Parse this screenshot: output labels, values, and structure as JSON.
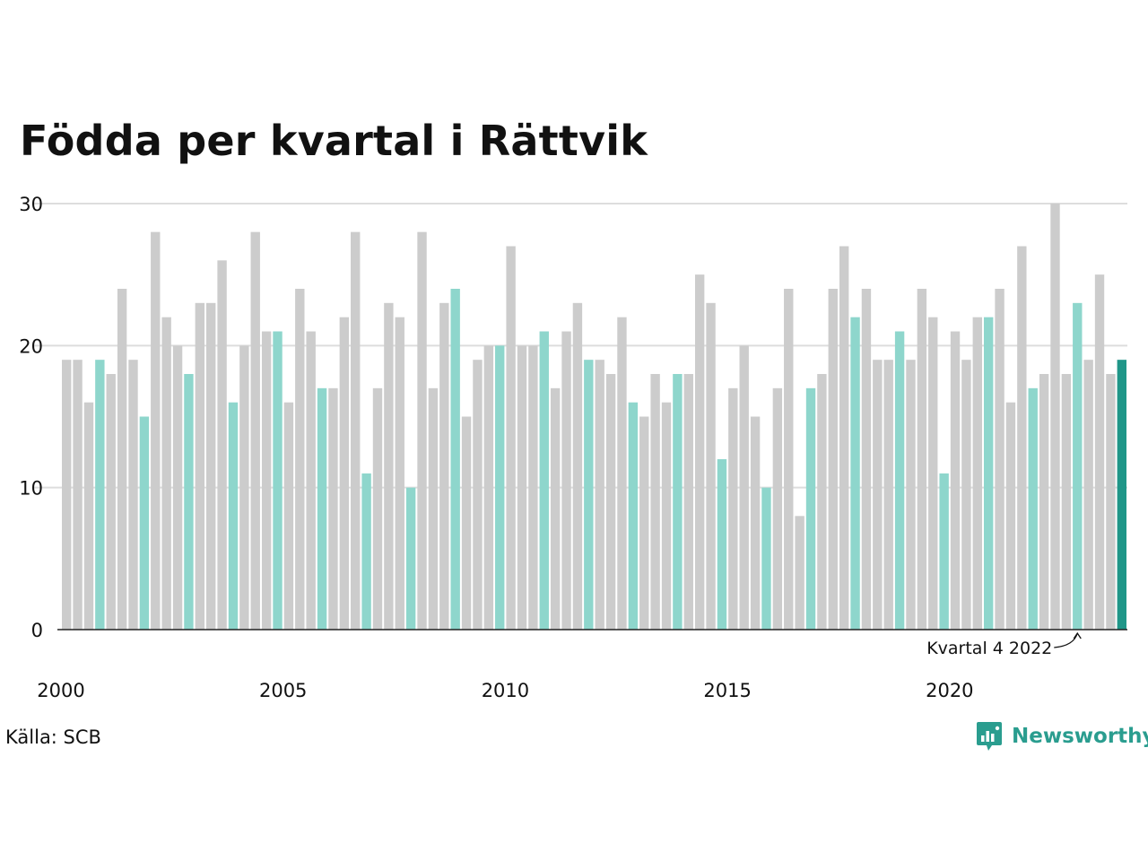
{
  "chart_data": {
    "type": "bar",
    "title": "Födda per kvartal i Rättvik",
    "xlabel": "",
    "ylabel": "",
    "ylim": [
      0,
      30
    ],
    "yticks": [
      0,
      10,
      20,
      30
    ],
    "xtick_labels": [
      "2000",
      "2005",
      "2010",
      "2015",
      "2020"
    ],
    "grid": true,
    "categories": [
      "2000 Q1",
      "2000 Q2",
      "2000 Q3",
      "2000 Q4",
      "2001 Q1",
      "2001 Q2",
      "2001 Q3",
      "2001 Q4",
      "2002 Q1",
      "2002 Q2",
      "2002 Q3",
      "2002 Q4",
      "2003 Q1",
      "2003 Q2",
      "2003 Q3",
      "2003 Q4",
      "2004 Q1",
      "2004 Q2",
      "2004 Q3",
      "2004 Q4",
      "2005 Q1",
      "2005 Q2",
      "2005 Q3",
      "2005 Q4",
      "2006 Q1",
      "2006 Q2",
      "2006 Q3",
      "2006 Q4",
      "2007 Q1",
      "2007 Q2",
      "2007 Q3",
      "2007 Q4",
      "2008 Q1",
      "2008 Q2",
      "2008 Q3",
      "2008 Q4",
      "2009 Q1",
      "2009 Q2",
      "2009 Q3",
      "2009 Q4",
      "2010 Q1",
      "2010 Q2",
      "2010 Q3",
      "2010 Q4",
      "2011 Q1",
      "2011 Q2",
      "2011 Q3",
      "2011 Q4",
      "2012 Q1",
      "2012 Q2",
      "2012 Q3",
      "2012 Q4",
      "2013 Q1",
      "2013 Q2",
      "2013 Q3",
      "2013 Q4",
      "2014 Q1",
      "2014 Q2",
      "2014 Q3",
      "2014 Q4",
      "2015 Q1",
      "2015 Q2",
      "2015 Q3",
      "2015 Q4",
      "2016 Q1",
      "2016 Q2",
      "2016 Q3",
      "2016 Q4",
      "2017 Q1",
      "2017 Q2",
      "2017 Q3",
      "2017 Q4",
      "2018 Q1",
      "2018 Q2",
      "2018 Q3",
      "2018 Q4",
      "2019 Q1",
      "2019 Q2",
      "2019 Q3",
      "2019 Q4",
      "2020 Q1",
      "2020 Q2",
      "2020 Q3",
      "2020 Q4",
      "2021 Q1",
      "2021 Q2",
      "2021 Q3",
      "2021 Q4",
      "2022 Q1",
      "2022 Q2",
      "2022 Q3",
      "2022 Q4",
      "2023 Q1",
      "2023 Q2",
      "2023 Q3",
      "2023 Q4"
    ],
    "values": [
      19,
      19,
      16,
      19,
      18,
      24,
      19,
      15,
      28,
      22,
      20,
      18,
      23,
      23,
      26,
      16,
      20,
      28,
      21,
      21,
      16,
      24,
      21,
      17,
      17,
      22,
      28,
      11,
      17,
      23,
      22,
      10,
      28,
      17,
      23,
      24,
      15,
      19,
      20,
      20,
      27,
      20,
      20,
      21,
      17,
      21,
      23,
      19,
      19,
      18,
      22,
      16,
      15,
      18,
      16,
      18,
      18,
      25,
      23,
      12,
      17,
      20,
      15,
      10,
      17,
      24,
      8,
      17,
      18,
      24,
      27,
      22,
      24,
      19,
      19,
      21,
      19,
      24,
      22,
      11,
      21,
      19,
      22,
      22,
      24,
      16,
      27,
      17,
      18,
      30,
      18,
      23,
      19,
      25,
      18,
      19
    ],
    "highlight_quarter": 4,
    "colors": {
      "default": "#cccccc",
      "same_quarter": "#8ed6cc",
      "latest": "#1f9688",
      "grid": "#dddddd",
      "axis": "#222222"
    },
    "annotation": "Kvartal 4 2022"
  },
  "source": "Källa: SCB",
  "brand": {
    "name": "Newsworthy",
    "logo_icon": "newsworthy-logo-icon",
    "color": "#2a9d8f"
  }
}
